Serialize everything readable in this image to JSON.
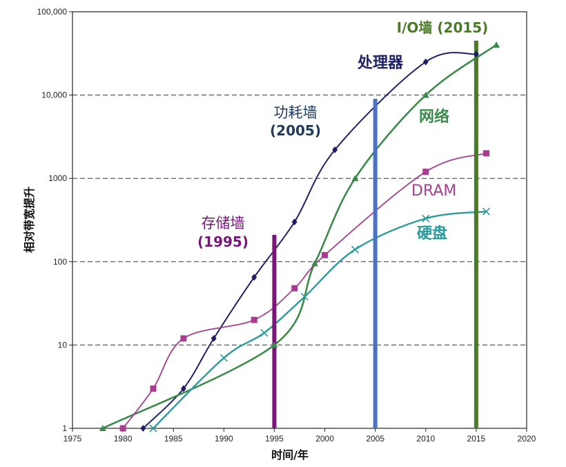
{
  "chart_data": {
    "type": "line",
    "yscale": "log",
    "xlabel": "时间/年",
    "ylabel": "相对带宽提升",
    "xlim": [
      1975,
      2020
    ],
    "ylim": [
      1,
      100000
    ],
    "x_ticks": [
      1975,
      1980,
      1985,
      1990,
      1995,
      2000,
      2005,
      2010,
      2015,
      2020
    ],
    "x_tick_labels": [
      "1975",
      "1980",
      "1985",
      "1990",
      "1995",
      "2000",
      "2005",
      "2010",
      "2015",
      "2020"
    ],
    "y_ticks": [
      1,
      10,
      100,
      1000,
      10000,
      100000
    ],
    "y_tick_labels": [
      "1",
      "10",
      "100",
      "1000",
      "10,000",
      "100,000"
    ],
    "dashed_gridlines": [
      10,
      100,
      1000,
      10000
    ],
    "series": [
      {
        "name": "处理器",
        "color": "#1f1f66",
        "marker": "diamond",
        "x": [
          1982,
          1986,
          1989,
          1993,
          1997,
          2001,
          2010,
          2015
        ],
        "y": [
          1,
          3,
          12,
          65,
          300,
          2200,
          25000,
          31000
        ]
      },
      {
        "name": "网络",
        "color": "#3a8a4a",
        "marker": "triangle",
        "x": [
          1978,
          1995,
          1999,
          2003,
          2010,
          2017
        ],
        "y": [
          1,
          10,
          95,
          1000,
          10000,
          40000
        ]
      },
      {
        "name": "DRAM",
        "color": "#a63d8f",
        "marker": "square",
        "x": [
          1980,
          1983,
          1986,
          1993,
          1997,
          2000,
          2010,
          2016
        ],
        "y": [
          1,
          3,
          12,
          20,
          48,
          120,
          1200,
          2000
        ]
      },
      {
        "name": "硬盘",
        "color": "#2a9a9a",
        "marker": "x",
        "x": [
          1983,
          1990,
          1994,
          1998,
          2003,
          2010,
          2016
        ],
        "y": [
          1,
          7,
          14,
          38,
          140,
          330,
          400
        ]
      }
    ],
    "walls": [
      {
        "year": 1995,
        "top": 210,
        "color": "#7a167a",
        "label_line1": "存储墙",
        "label_line2": "(1995)"
      },
      {
        "year": 2005,
        "top": 9000,
        "color": "#4a73c8",
        "label_line1": "功耗墙",
        "label_line2": "(2005)"
      },
      {
        "year": 2015,
        "top": 45000,
        "color": "#4a7a2a",
        "label_line1": "I/O墙 (2015)",
        "label_line2": ""
      }
    ],
    "series_labels": {
      "processor": "处理器",
      "network": "网络",
      "dram": "DRAM",
      "disk": "硬盘"
    }
  }
}
